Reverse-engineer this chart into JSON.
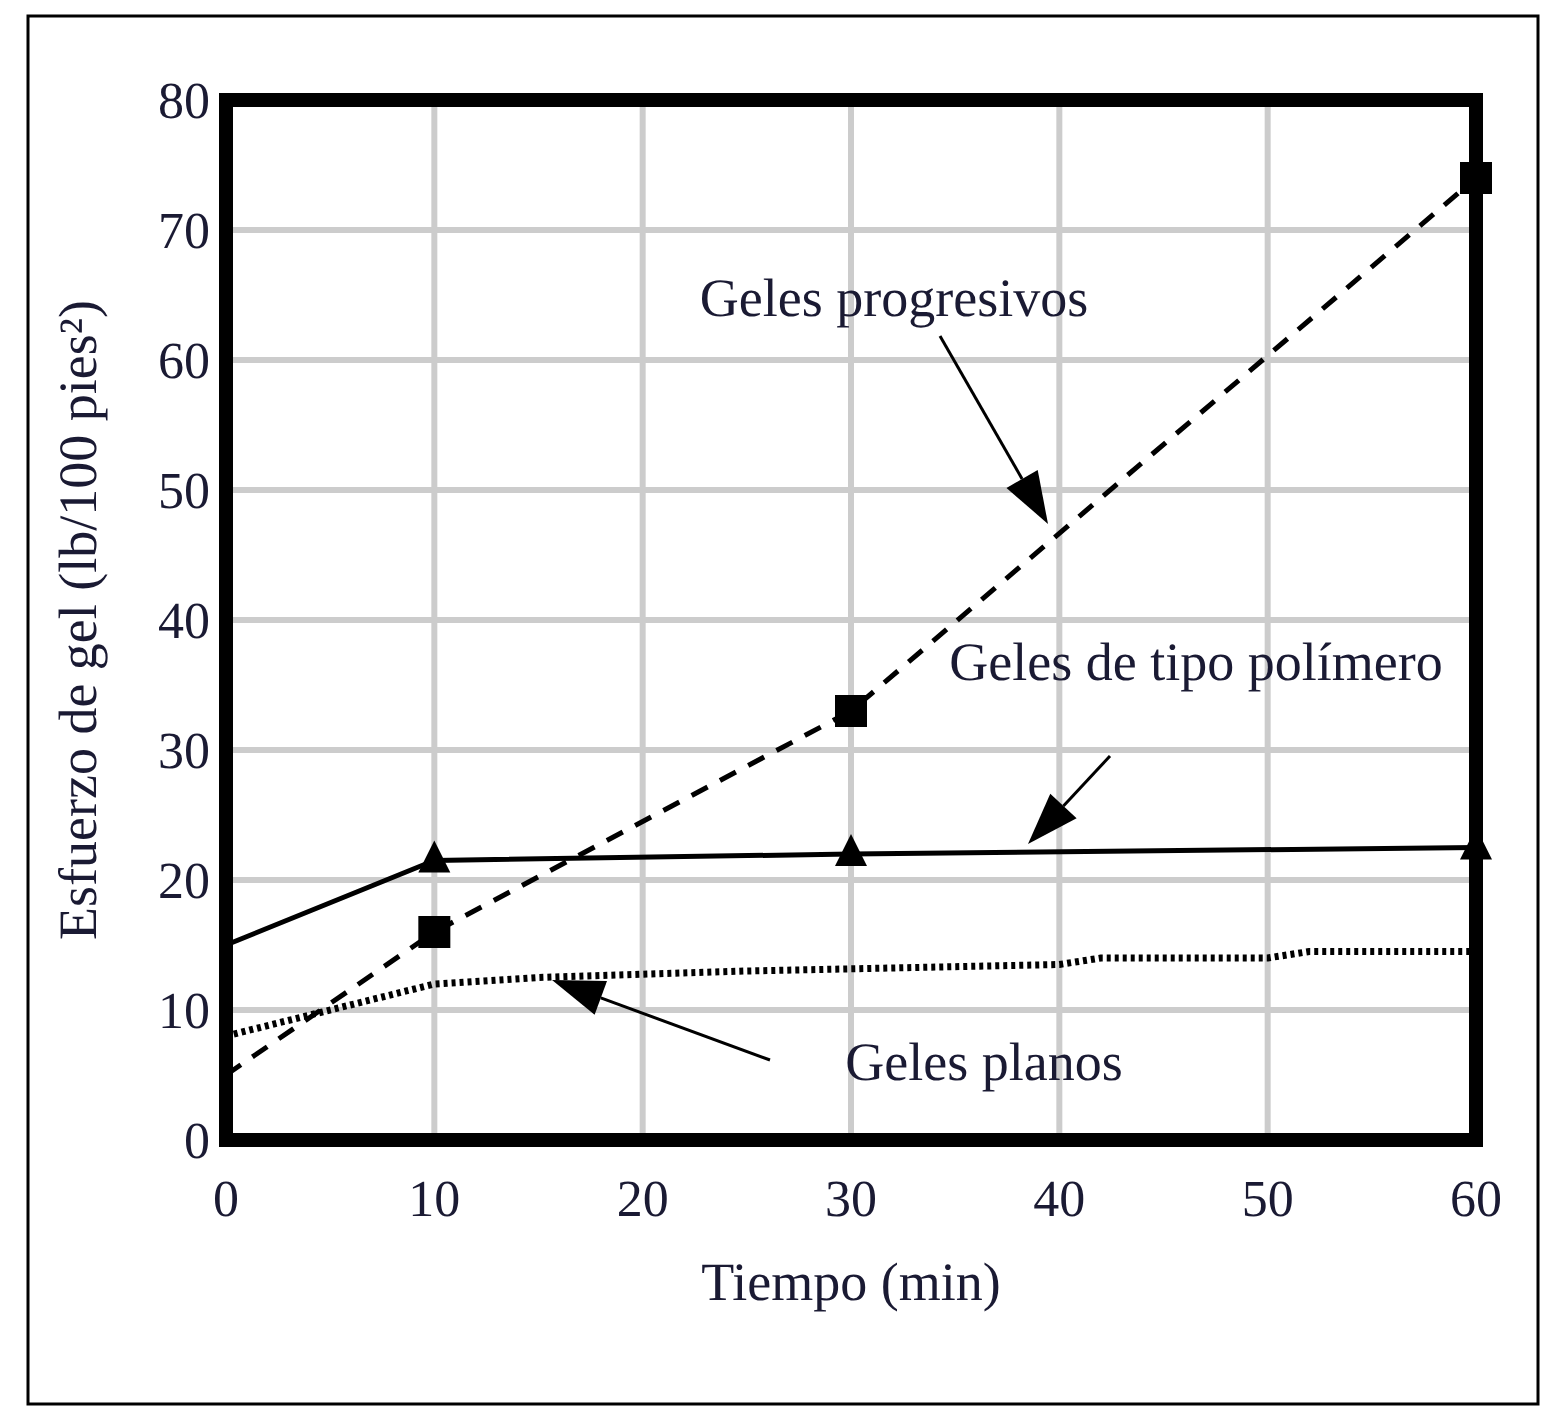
{
  "chart_data": {
    "type": "line",
    "xlabel": "Tiempo (min)",
    "ylabel": "Esfuerzo de gel (lb/100 pies²)",
    "xlim": [
      0,
      60
    ],
    "ylim": [
      0,
      80
    ],
    "xticks": [
      0,
      10,
      20,
      30,
      40,
      50,
      60
    ],
    "yticks": [
      0,
      10,
      20,
      30,
      40,
      50,
      60,
      70,
      80
    ],
    "grid": true,
    "series": [
      {
        "color": "#000000",
        "line_style": "dashed",
        "marker": "none",
        "x": [
          0,
          10,
          30,
          60
        ],
        "values": [
          5,
          16,
          33,
          74
        ]
      },
      {
        "type": "scatter",
        "color": "#000000",
        "marker": "square",
        "x": [
          10,
          30,
          60
        ],
        "values": [
          16,
          33,
          74
        ]
      },
      {
        "color": "#000000",
        "line_style": "solid",
        "marker": "none",
        "x": [
          0,
          10,
          30,
          60
        ],
        "values": [
          15,
          21.5,
          22,
          22.5
        ]
      },
      {
        "type": "scatter",
        "color": "#000000",
        "marker": "triangle",
        "x": [
          10,
          30,
          60
        ],
        "values": [
          21.5,
          22,
          22.5
        ]
      },
      {
        "color": "#000000",
        "line_style": "dotted",
        "marker": "none",
        "x": [
          0,
          10,
          15,
          25,
          40,
          42,
          50,
          52,
          60
        ],
        "values": [
          8,
          12,
          12.5,
          13,
          13.5,
          14,
          14,
          14.5,
          14.5
        ]
      }
    ],
    "annotations": [
      "Geles progresivos",
      "Geles de tipo polímero",
      "Geles planos"
    ]
  }
}
